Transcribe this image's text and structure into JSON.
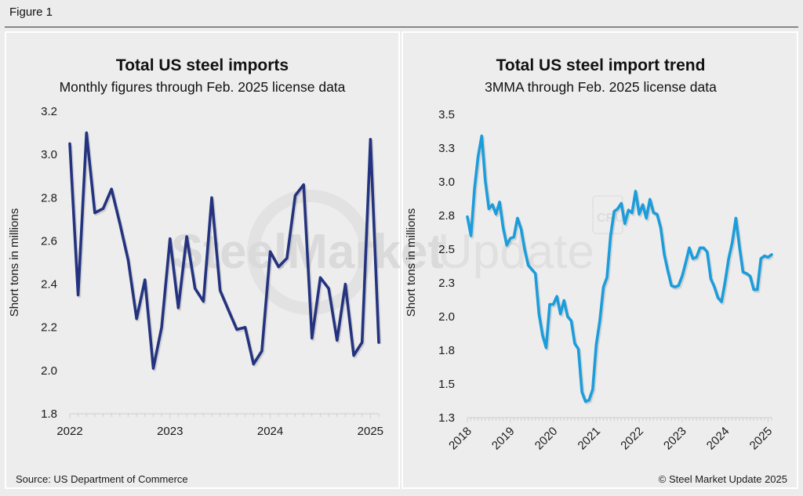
{
  "figure_label": "Figure 1",
  "source": "Source: US Department of Commerce",
  "copyright": "© Steel Market Update 2025",
  "watermark": {
    "bold": "SteelMarket",
    "light": "Update",
    "badge": "CRU"
  },
  "colors": {
    "left_series": "#24337f",
    "right_series": "#1b9ddb",
    "background": "#ededed"
  },
  "chart_data": [
    {
      "type": "line",
      "title": "Total US steel imports",
      "subtitle": "Monthly figures through Feb. 2025 license data",
      "xlabel": "",
      "ylabel": "Short tons in millions",
      "ylim": [
        1.8,
        3.2
      ],
      "yticks": [
        "3.2",
        "3.0",
        "2.8",
        "2.6",
        "2.4",
        "2.2",
        "2.0",
        "1.8"
      ],
      "ytick_values": [
        3.2,
        3.0,
        2.8,
        2.6,
        2.4,
        2.2,
        2.0,
        1.8
      ],
      "xticks": [
        "2022",
        "2023",
        "2024",
        "2025"
      ],
      "x_start": "2022-01",
      "x_end": "2025-02",
      "grid": false,
      "series": [
        {
          "name": "Total US steel imports (monthly)",
          "x": [
            "2022-01",
            "2022-02",
            "2022-03",
            "2022-04",
            "2022-05",
            "2022-06",
            "2022-07",
            "2022-08",
            "2022-09",
            "2022-10",
            "2022-11",
            "2022-12",
            "2023-01",
            "2023-02",
            "2023-03",
            "2023-04",
            "2023-05",
            "2023-06",
            "2023-07",
            "2023-08",
            "2023-09",
            "2023-10",
            "2023-11",
            "2023-12",
            "2024-01",
            "2024-02",
            "2024-03",
            "2024-04",
            "2024-05",
            "2024-06",
            "2024-07",
            "2024-08",
            "2024-09",
            "2024-10",
            "2024-11",
            "2024-12",
            "2025-01",
            "2025-02"
          ],
          "values": [
            3.05,
            2.35,
            3.1,
            2.73,
            2.75,
            2.84,
            2.68,
            2.51,
            2.24,
            2.42,
            2.01,
            2.2,
            2.61,
            2.29,
            2.62,
            2.38,
            2.32,
            2.8,
            2.37,
            2.28,
            2.19,
            2.2,
            2.03,
            2.09,
            2.55,
            2.48,
            2.52,
            2.81,
            2.86,
            2.15,
            2.43,
            2.38,
            2.14,
            2.4,
            2.07,
            2.13,
            3.07,
            2.13
          ]
        }
      ]
    },
    {
      "type": "line",
      "title": "Total US steel import trend",
      "subtitle": "3MMA through Feb. 2025 license data",
      "xlabel": "",
      "ylabel": "Short tons in millions",
      "ylim": [
        1.25,
        3.5
      ],
      "yticks": [
        "3.5",
        "3.3",
        "3.0",
        "2.8",
        "2.5",
        "2.3",
        "2.0",
        "1.8",
        "1.5",
        "1.3"
      ],
      "ytick_values": [
        3.5,
        3.25,
        3.0,
        2.75,
        2.5,
        2.25,
        2.0,
        1.75,
        1.5,
        1.25
      ],
      "xticks": [
        "2018",
        "2019",
        "2020",
        "2021",
        "2022",
        "2023",
        "2024",
        "2025"
      ],
      "x_start": "2018-01",
      "x_end": "2025-02",
      "grid": false,
      "series": [
        {
          "name": "Total US steel imports (3MMA)",
          "values": [
            2.74,
            2.6,
            2.95,
            3.19,
            3.34,
            3.01,
            2.8,
            2.83,
            2.76,
            2.85,
            2.66,
            2.53,
            2.58,
            2.59,
            2.73,
            2.65,
            2.5,
            2.38,
            2.35,
            2.32,
            2.02,
            1.86,
            1.77,
            2.09,
            2.09,
            2.15,
            2.02,
            2.12,
            2.0,
            1.97,
            1.8,
            1.76,
            1.44,
            1.37,
            1.38,
            1.46,
            1.79,
            1.97,
            2.22,
            2.29,
            2.6,
            2.78,
            2.8,
            2.84,
            2.69,
            2.79,
            2.77,
            2.93,
            2.76,
            2.83,
            2.73,
            2.87,
            2.77,
            2.76,
            2.66,
            2.46,
            2.34,
            2.23,
            2.22,
            2.23,
            2.3,
            2.4,
            2.51,
            2.43,
            2.44,
            2.51,
            2.51,
            2.48,
            2.28,
            2.22,
            2.14,
            2.11,
            2.26,
            2.43,
            2.55,
            2.73,
            2.52,
            2.33,
            2.32,
            2.3,
            2.2,
            2.2,
            2.43,
            2.45,
            2.44,
            2.46
          ]
        }
      ]
    }
  ]
}
